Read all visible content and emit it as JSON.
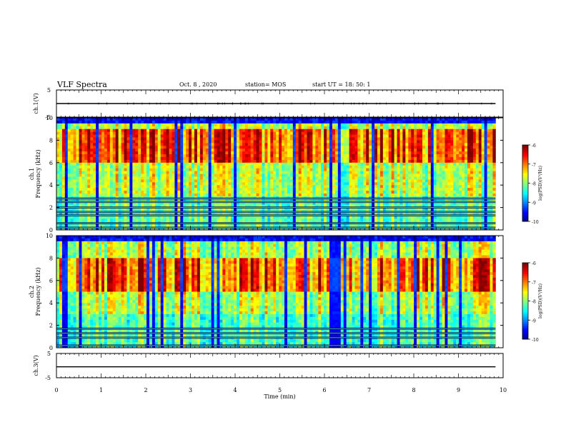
{
  "header": {
    "title": "VLF Spectra",
    "date": "Oct. 8 , 2020",
    "station": "station= MOS",
    "start": "start UT = 18: 50: 1"
  },
  "chart_data": [
    {
      "type": "line",
      "panel": "ch1-waveform",
      "ylabel": "ch.1(V)",
      "ylim": [
        -5,
        5
      ],
      "yticks": [
        "5",
        "-5"
      ],
      "x": [
        0,
        9.83
      ],
      "values": [
        0,
        0
      ],
      "xlim": [
        0,
        10
      ]
    },
    {
      "type": "heatmap",
      "panel": "ch1-spectrogram",
      "ylabel": "ch.1 Frequency (kHz)",
      "ylim": [
        0,
        10
      ],
      "yticks": [
        "0",
        "2",
        "4",
        "6",
        "8",
        "10"
      ],
      "xlim": [
        0,
        9.83
      ],
      "colorbar": {
        "label": "log(PSD)(V²/Hz)",
        "range": [
          -10,
          -6
        ],
        "ticks": [
          "-6",
          "-7",
          "-8",
          "-9",
          "-10"
        ]
      },
      "banded_lines_khz": [
        0.2,
        0.6,
        1.3,
        1.6,
        2.0,
        2.5,
        2.8
      ],
      "peak_band_khz": [
        6,
        9
      ]
    },
    {
      "type": "heatmap",
      "panel": "ch2-spectrogram",
      "ylabel": "ch.2 Frequency (kHz)",
      "ylim": [
        0,
        10
      ],
      "yticks": [
        "0",
        "2",
        "4",
        "6",
        "8",
        "10"
      ],
      "xlim": [
        0,
        9.83
      ],
      "colorbar": {
        "label": "log(PSD)(V²/Hz)",
        "range": [
          -10,
          -6
        ],
        "ticks": [
          "-6",
          "-7",
          "-8",
          "-9",
          "-10"
        ]
      },
      "banded_lines_khz": [
        0.2,
        0.9,
        1.3,
        1.7
      ],
      "peak_band_khz": [
        5,
        8
      ]
    },
    {
      "type": "line",
      "panel": "ch3-waveform",
      "ylabel": "ch.3(V)",
      "ylim": [
        -5,
        5
      ],
      "yticks": [
        "5",
        "-5"
      ],
      "x": [
        0,
        9.83
      ],
      "values": [
        -0.5,
        -0.5
      ],
      "xlim": [
        0,
        10
      ]
    }
  ],
  "xaxis": {
    "label": "Time (min)",
    "ticks": [
      "0",
      "1",
      "2",
      "3",
      "4",
      "5",
      "6",
      "7",
      "8",
      "9",
      "10"
    ]
  },
  "colors": {
    "axis": "#000000",
    "background": "#ffffff"
  }
}
